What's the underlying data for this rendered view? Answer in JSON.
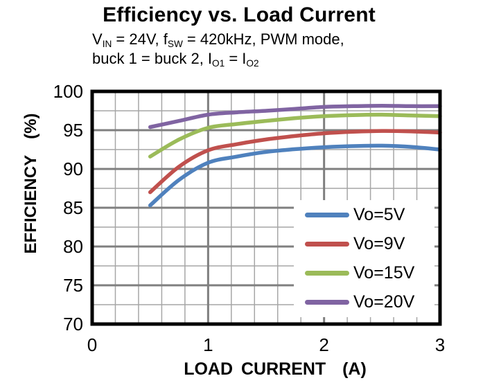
{
  "page": {
    "title": "Efficiency vs. Load Current",
    "subtitle_lines": [
      [
        {
          "t": "V"
        },
        {
          "t": "IN",
          "sub": true
        },
        {
          "t": " = 24V, f"
        },
        {
          "t": "SW",
          "sub": true
        },
        {
          "t": " = 420kHz, PWM mode,"
        }
      ],
      [
        {
          "t": "buck 1 = buck 2, I"
        },
        {
          "t": "O1",
          "sub": true
        },
        {
          "t": " = I"
        },
        {
          "t": "O2",
          "sub": true
        }
      ]
    ]
  },
  "chart_data": {
    "type": "line",
    "title": "Efficiency vs. Load Current",
    "subtitle": "VIN = 24V, fSW = 420kHz, PWM mode, buck 1 = buck 2, IO1 = IO2",
    "x_axis": {
      "label": "LOAD CURRENT  (A)",
      "min": 0,
      "max": 3,
      "major_ticks": [
        0,
        1,
        2,
        3
      ],
      "tick_labels": [
        "0",
        "1",
        "2",
        "3"
      ],
      "major_step": 1,
      "minor_step": 0.2
    },
    "y_axis": {
      "label": "EFFICIENCY  (%)",
      "min": 70,
      "max": 100,
      "major_ticks": [
        70,
        75,
        80,
        85,
        90,
        95,
        100
      ],
      "tick_labels": [
        "70",
        "75",
        "80",
        "85",
        "90",
        "95",
        "100"
      ],
      "major_step": 5,
      "minor_step": 2.5
    },
    "x": [
      0.5,
      0.75,
      1.0,
      1.25,
      1.5,
      1.75,
      2.0,
      2.25,
      2.5,
      2.75,
      3.0
    ],
    "series": [
      {
        "name": "Vo=5V",
        "color": "#4F81BD",
        "values": [
          85.3,
          88.6,
          90.8,
          91.6,
          92.2,
          92.55,
          92.8,
          92.95,
          93.0,
          92.85,
          92.5
        ]
      },
      {
        "name": "Vo=9V",
        "color": "#C0504D",
        "values": [
          87.0,
          90.3,
          92.4,
          93.2,
          93.8,
          94.25,
          94.6,
          94.8,
          94.9,
          94.85,
          94.7
        ]
      },
      {
        "name": "Vo=15V",
        "color": "#9BBB59",
        "values": [
          91.6,
          93.8,
          95.3,
          95.8,
          96.2,
          96.55,
          96.8,
          96.95,
          97.0,
          96.9,
          96.8
        ]
      },
      {
        "name": "Vo=20V",
        "color": "#8064A2",
        "values": [
          95.4,
          96.2,
          97.0,
          97.3,
          97.5,
          97.75,
          98.0,
          98.1,
          98.15,
          98.1,
          98.1
        ]
      }
    ],
    "legend": {
      "position": "inside-bottom-right",
      "entries": [
        "Vo=5V",
        "Vo=9V",
        "Vo=15V",
        "Vo=20V"
      ]
    },
    "grid": {
      "shown": true,
      "minor_color": "#a6a6a6",
      "major_color": "#7f7f7f",
      "border_color": "#000000",
      "background": "#ffffff"
    }
  }
}
